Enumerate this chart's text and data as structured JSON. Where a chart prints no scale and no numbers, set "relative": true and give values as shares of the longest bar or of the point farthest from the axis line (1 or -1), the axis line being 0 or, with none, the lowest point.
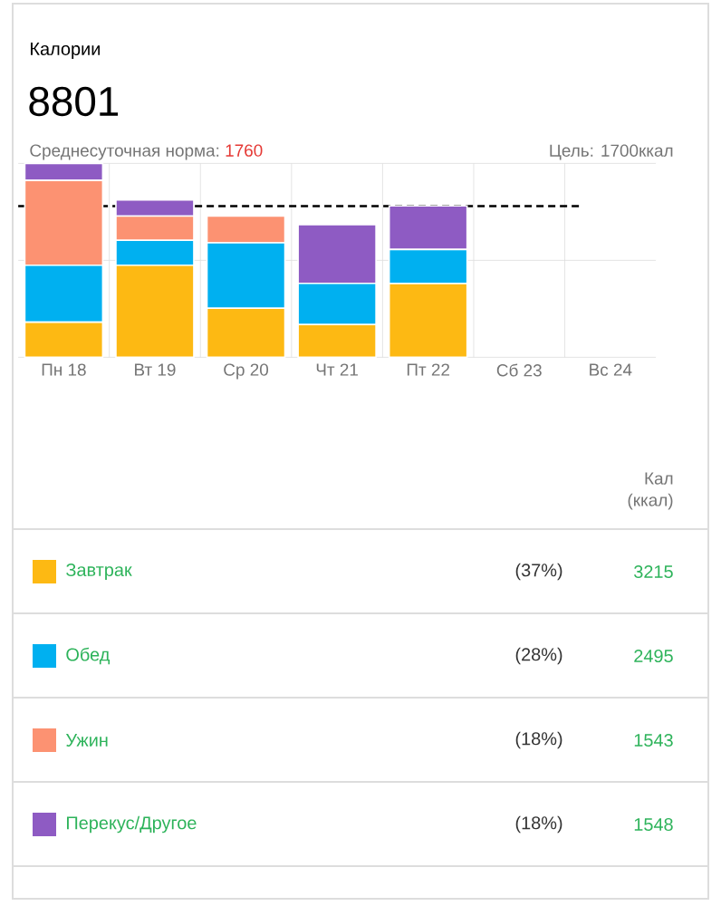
{
  "chart_data": {
    "type": "bar",
    "stacked": true,
    "relative": true,
    "title": "Калории",
    "categories": [
      "Пн 18",
      "Вт 19",
      "Ср 20",
      "Чт 21",
      "Пт 22",
      "Сб 23",
      "Вс 24"
    ],
    "series": [
      {
        "name": "Завтрак",
        "color": "#fdb913",
        "values": [
          0.181,
          0.475,
          0.253,
          0.169,
          0.381,
          0,
          0
        ]
      },
      {
        "name": "Обед",
        "color": "#00b0f0",
        "values": [
          0.294,
          0.128,
          0.3375,
          0.2125,
          0.175,
          0,
          0
        ]
      },
      {
        "name": "Ужин",
        "color": "#fc9272",
        "values": [
          0.4375,
          0.125,
          0.1375,
          0,
          0,
          0,
          0
        ]
      },
      {
        "name": "Перекус/Другое",
        "color": "#8e5bc3",
        "values": [
          0.0875,
          0.084,
          0,
          0.303,
          0.225,
          0,
          0
        ]
      }
    ],
    "ref_lines": [
      {
        "axis": "y",
        "value": 0.78,
        "color": "#000000",
        "line_style": "dashed"
      }
    ],
    "grid": true,
    "legend": "bottom",
    "annotations": [
      "8801",
      "Среднесуточная норма:",
      "1760",
      "Цель: 1700ккал",
      "Кал (ккал)",
      "(37%)",
      "3215",
      "(28%)",
      "2495",
      "(18%)",
      "1543",
      "(18%)",
      "1548"
    ]
  }
}
